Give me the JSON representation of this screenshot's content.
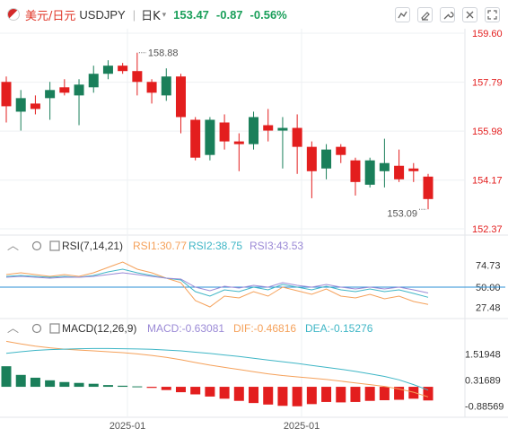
{
  "header": {
    "symbol_cn": "美元/日元",
    "symbol": "USDJPY",
    "period": "日K",
    "price": "153.47",
    "change": "-0.87",
    "change_pct": "-0.56%"
  },
  "colors": {
    "up": "#1a7f5a",
    "down": "#e31e1e",
    "rsi1": "#f5a15a",
    "rsi2": "#3fb6c6",
    "rsi3": "#9b8ad6",
    "dif": "#f5a15a",
    "dea": "#3fb6c6",
    "ref": "#2a8fd6"
  },
  "chart_data": [
    {
      "type": "candlestick",
      "name": "price",
      "y_ticks": [
        "159.60",
        "157.79",
        "155.98",
        "154.17",
        "152.37"
      ],
      "ylim": [
        152.37,
        159.6
      ],
      "annotations": [
        {
          "label": "158.88",
          "value": 158.88
        },
        {
          "label": "153.09",
          "value": 153.09
        }
      ],
      "candles": [
        {
          "o": 157.8,
          "h": 158.0,
          "l": 156.3,
          "c": 156.9
        },
        {
          "o": 156.7,
          "h": 157.5,
          "l": 156.0,
          "c": 157.2
        },
        {
          "o": 157.0,
          "h": 157.3,
          "l": 156.6,
          "c": 156.8
        },
        {
          "o": 157.2,
          "h": 157.8,
          "l": 156.4,
          "c": 157.5
        },
        {
          "o": 157.6,
          "h": 157.9,
          "l": 157.3,
          "c": 157.4
        },
        {
          "o": 157.3,
          "h": 157.9,
          "l": 156.2,
          "c": 157.7
        },
        {
          "o": 157.6,
          "h": 158.4,
          "l": 157.4,
          "c": 158.1
        },
        {
          "o": 158.1,
          "h": 158.6,
          "l": 157.9,
          "c": 158.4
        },
        {
          "o": 158.4,
          "h": 158.5,
          "l": 158.1,
          "c": 158.2
        },
        {
          "o": 158.2,
          "h": 158.88,
          "l": 157.3,
          "c": 157.8
        },
        {
          "o": 157.8,
          "h": 157.9,
          "l": 157.0,
          "c": 157.4
        },
        {
          "o": 157.3,
          "h": 158.3,
          "l": 157.1,
          "c": 158.0
        },
        {
          "o": 158.0,
          "h": 158.1,
          "l": 155.9,
          "c": 156.5
        },
        {
          "o": 156.4,
          "h": 156.5,
          "l": 154.9,
          "c": 155.0
        },
        {
          "o": 155.1,
          "h": 156.5,
          "l": 154.9,
          "c": 156.4
        },
        {
          "o": 156.3,
          "h": 156.6,
          "l": 155.3,
          "c": 155.6
        },
        {
          "o": 155.6,
          "h": 155.9,
          "l": 154.5,
          "c": 155.5
        },
        {
          "o": 155.5,
          "h": 156.7,
          "l": 155.3,
          "c": 156.5
        },
        {
          "o": 156.2,
          "h": 156.8,
          "l": 155.6,
          "c": 156.0
        },
        {
          "o": 156.0,
          "h": 156.5,
          "l": 154.6,
          "c": 156.1
        },
        {
          "o": 156.1,
          "h": 156.6,
          "l": 154.4,
          "c": 155.4
        },
        {
          "o": 155.4,
          "h": 155.6,
          "l": 153.5,
          "c": 154.5
        },
        {
          "o": 154.6,
          "h": 155.5,
          "l": 154.2,
          "c": 155.3
        },
        {
          "o": 155.4,
          "h": 155.5,
          "l": 154.8,
          "c": 155.1
        },
        {
          "o": 154.9,
          "h": 155.0,
          "l": 153.6,
          "c": 154.1
        },
        {
          "o": 154.0,
          "h": 155.0,
          "l": 153.9,
          "c": 154.9
        },
        {
          "o": 154.5,
          "h": 155.7,
          "l": 153.9,
          "c": 154.8
        },
        {
          "o": 154.7,
          "h": 155.3,
          "l": 154.1,
          "c": 154.2
        },
        {
          "o": 154.6,
          "h": 154.8,
          "l": 154.1,
          "c": 154.5
        },
        {
          "o": 154.3,
          "h": 154.4,
          "l": 153.09,
          "c": 153.47
        }
      ]
    },
    {
      "type": "line",
      "name": "RSI(7,14,21)",
      "legend": [
        {
          "text": "RSI(7,14,21)"
        },
        {
          "text": "RSI1:30.77"
        },
        {
          "text": "RSI2:38.75"
        },
        {
          "text": "RSI3:43.53"
        }
      ],
      "y_ticks": [
        "74.73",
        "50.00",
        "27.48"
      ],
      "ylim": [
        20,
        88
      ],
      "reference": 50,
      "series": [
        {
          "name": "RSI1",
          "values": [
            64,
            66,
            64,
            62,
            64,
            62,
            66,
            72,
            78,
            70,
            66,
            60,
            55,
            35,
            28,
            40,
            38,
            45,
            40,
            50,
            46,
            42,
            48,
            40,
            38,
            42,
            37,
            40,
            34,
            30.77
          ]
        },
        {
          "name": "RSI2",
          "values": [
            62,
            63,
            62,
            61,
            62,
            61,
            63,
            67,
            70,
            66,
            63,
            60,
            58,
            45,
            40,
            47,
            45,
            50,
            47,
            53,
            50,
            47,
            51,
            47,
            45,
            48,
            45,
            47,
            43,
            38.75
          ]
        },
        {
          "name": "RSI3",
          "values": [
            61,
            62,
            61,
            60,
            61,
            61,
            62,
            64,
            66,
            64,
            62,
            60,
            59,
            50,
            46,
            51,
            49,
            52,
            50,
            55,
            52,
            50,
            53,
            50,
            48,
            50,
            48,
            50,
            47,
            43.53
          ]
        }
      ]
    },
    {
      "type": "bar+line",
      "name": "MACD(12,26,9)",
      "legend": [
        {
          "text": "MACD(12,26,9)"
        },
        {
          "text": "MACD:-0.63081"
        },
        {
          "text": "DIF:-0.46816"
        },
        {
          "text": "DEA:-0.15276"
        }
      ],
      "y_ticks": [
        "1.51948",
        "0.31689",
        "-0.88569"
      ],
      "ylim": [
        -1.2,
        2.2
      ],
      "macd": [
        0.95,
        0.55,
        0.42,
        0.3,
        0.22,
        0.18,
        0.14,
        0.08,
        0.05,
        0.02,
        -0.05,
        -0.15,
        -0.25,
        -0.35,
        -0.45,
        -0.55,
        -0.65,
        -0.75,
        -0.82,
        -0.88,
        -0.9,
        -0.8,
        -0.7,
        -0.72,
        -0.7,
        -0.65,
        -0.62,
        -0.6,
        -0.55,
        -0.63081
      ],
      "dif": [
        2.1,
        1.98,
        1.88,
        1.8,
        1.74,
        1.7,
        1.66,
        1.62,
        1.58,
        1.52,
        1.45,
        1.36,
        1.25,
        1.12,
        1.0,
        0.9,
        0.8,
        0.7,
        0.6,
        0.52,
        0.46,
        0.4,
        0.34,
        0.26,
        0.18,
        0.1,
        0.02,
        -0.1,
        -0.25,
        -0.46816
      ],
      "dea": [
        1.55,
        1.62,
        1.68,
        1.72,
        1.74,
        1.76,
        1.77,
        1.77,
        1.76,
        1.75,
        1.73,
        1.7,
        1.66,
        1.6,
        1.54,
        1.47,
        1.4,
        1.32,
        1.24,
        1.16,
        1.08,
        0.99,
        0.9,
        0.81,
        0.71,
        0.6,
        0.48,
        0.32,
        0.1,
        -0.15276
      ]
    }
  ],
  "x_axis": {
    "labels": [
      "2025-01",
      "2025-01"
    ]
  }
}
